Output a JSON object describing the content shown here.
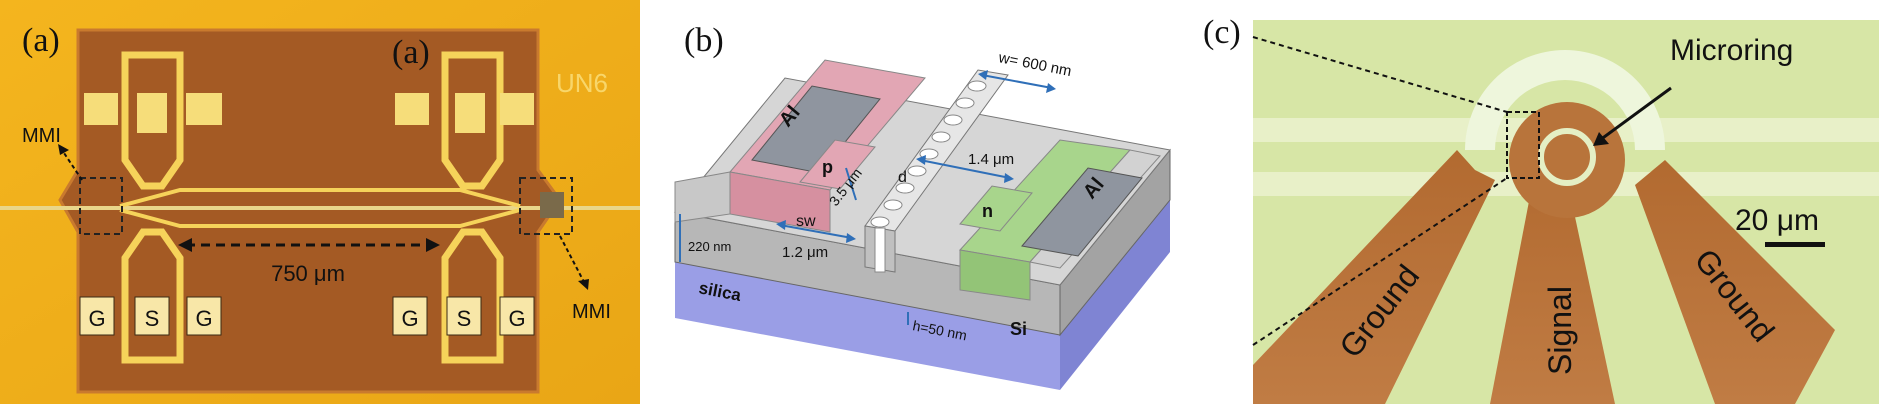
{
  "figure": {
    "panel_a": {
      "label": "(a)",
      "label_inset": "(a)",
      "chip_mark": "UN6",
      "mmi_left": "MMI",
      "mmi_right": "MMI",
      "length": "750 μm",
      "pads_left": [
        "G",
        "S",
        "G"
      ],
      "pads_right": [
        "G",
        "S",
        "G"
      ]
    },
    "panel_b": {
      "label": "(b)",
      "width_label": "w= 600 nm",
      "al_left": "Al",
      "al_right": "Al",
      "p_label": "p",
      "n_label": "n",
      "dim_35": "3.5 μm",
      "d_label": "d",
      "dim_14": "1.4 μm",
      "sw_label": "sw",
      "dim_12": "1.2 μm",
      "thick_220": "220 nm",
      "silica": "silica",
      "h_label": "h=50 nm",
      "si_label": "Si"
    },
    "panel_c": {
      "label": "(c)",
      "microring": "Microring",
      "scale": "20 μm",
      "ground_left": "Ground",
      "signal": "Signal",
      "ground_right": "Ground"
    }
  },
  "colors": {
    "a_bg": "#f3b21c",
    "a_die": "#a45a24",
    "a_metal": "#f6d35a",
    "b_silica": "#9a9ee6",
    "b_si": "#cfcfcf",
    "b_p": "#e2a6b4",
    "b_n": "#a8d58c",
    "b_al": "#8f959f",
    "c_bg": "#d7e6a6",
    "c_metal": "#b8743b"
  }
}
